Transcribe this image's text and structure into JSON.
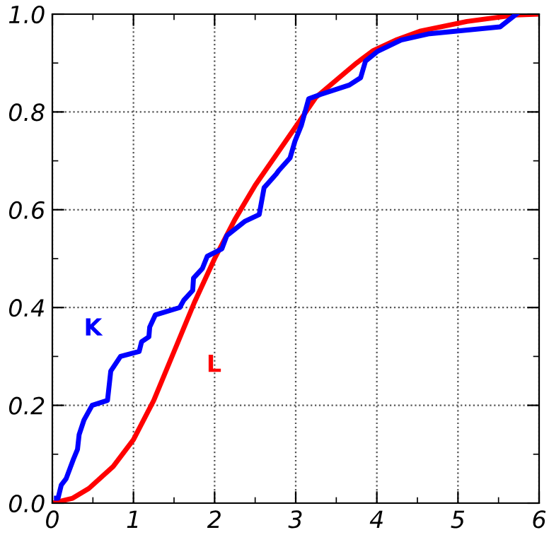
{
  "chart_data": {
    "type": "line",
    "xlim": [
      0,
      6
    ],
    "ylim": [
      0,
      1.0
    ],
    "xticks": [
      0,
      1,
      2,
      3,
      4,
      5,
      6
    ],
    "yticks": [
      {
        "value": 0,
        "label": "0.0"
      },
      {
        "value": 0.2,
        "label": "0.2"
      },
      {
        "value": 0.4,
        "label": "0.4"
      },
      {
        "value": 0.6,
        "label": "0.6"
      },
      {
        "value": 0.8,
        "label": "0.8"
      },
      {
        "value": 1.0,
        "label": "1.0"
      }
    ],
    "grid": true,
    "line_style": "solid",
    "marker": "none",
    "series": [
      {
        "name": "K",
        "color": "#0000ff",
        "x": [
          0.05,
          0.07,
          0.11,
          0.17,
          0.26,
          0.31,
          0.33,
          0.39,
          0.49,
          0.68,
          0.72,
          0.84,
          1.07,
          1.1,
          1.19,
          1.2,
          1.27,
          1.57,
          1.62,
          1.73,
          1.74,
          1.85,
          1.91,
          2.09,
          2.15,
          2.37,
          2.55,
          2.61,
          2.76,
          2.79,
          2.93,
          2.99,
          3.07,
          3.16,
          3.31,
          3.66,
          3.8,
          3.86,
          4.01,
          4.3,
          4.65,
          5.52,
          5.72
        ],
        "values": [
          0.01,
          0.01,
          0.037,
          0.05,
          0.09,
          0.11,
          0.14,
          0.17,
          0.2,
          0.21,
          0.27,
          0.3,
          0.31,
          0.33,
          0.34,
          0.36,
          0.385,
          0.4,
          0.415,
          0.435,
          0.46,
          0.48,
          0.505,
          0.52,
          0.547,
          0.576,
          0.59,
          0.645,
          0.673,
          0.68,
          0.706,
          0.74,
          0.773,
          0.827,
          0.836,
          0.855,
          0.87,
          0.904,
          0.924,
          0.947,
          0.96,
          0.974,
          1.0
        ]
      },
      {
        "name": "L",
        "color": "#ff0000",
        "x": [
          0,
          0.25,
          0.45,
          0.75,
          1,
          1.25,
          1.5,
          1.75,
          2,
          2.25,
          2.5,
          2.75,
          3,
          3.25,
          3.5,
          3.75,
          3.95,
          4.25,
          4.53,
          5.11,
          5.7,
          6
        ],
        "values": [
          0,
          0.01,
          0.03,
          0.075,
          0.13,
          0.21,
          0.31,
          0.41,
          0.5,
          0.58,
          0.65,
          0.71,
          0.77,
          0.83,
          0.865,
          0.9,
          0.925,
          0.948,
          0.965,
          0.985,
          0.998,
          1.0
        ]
      }
    ]
  }
}
